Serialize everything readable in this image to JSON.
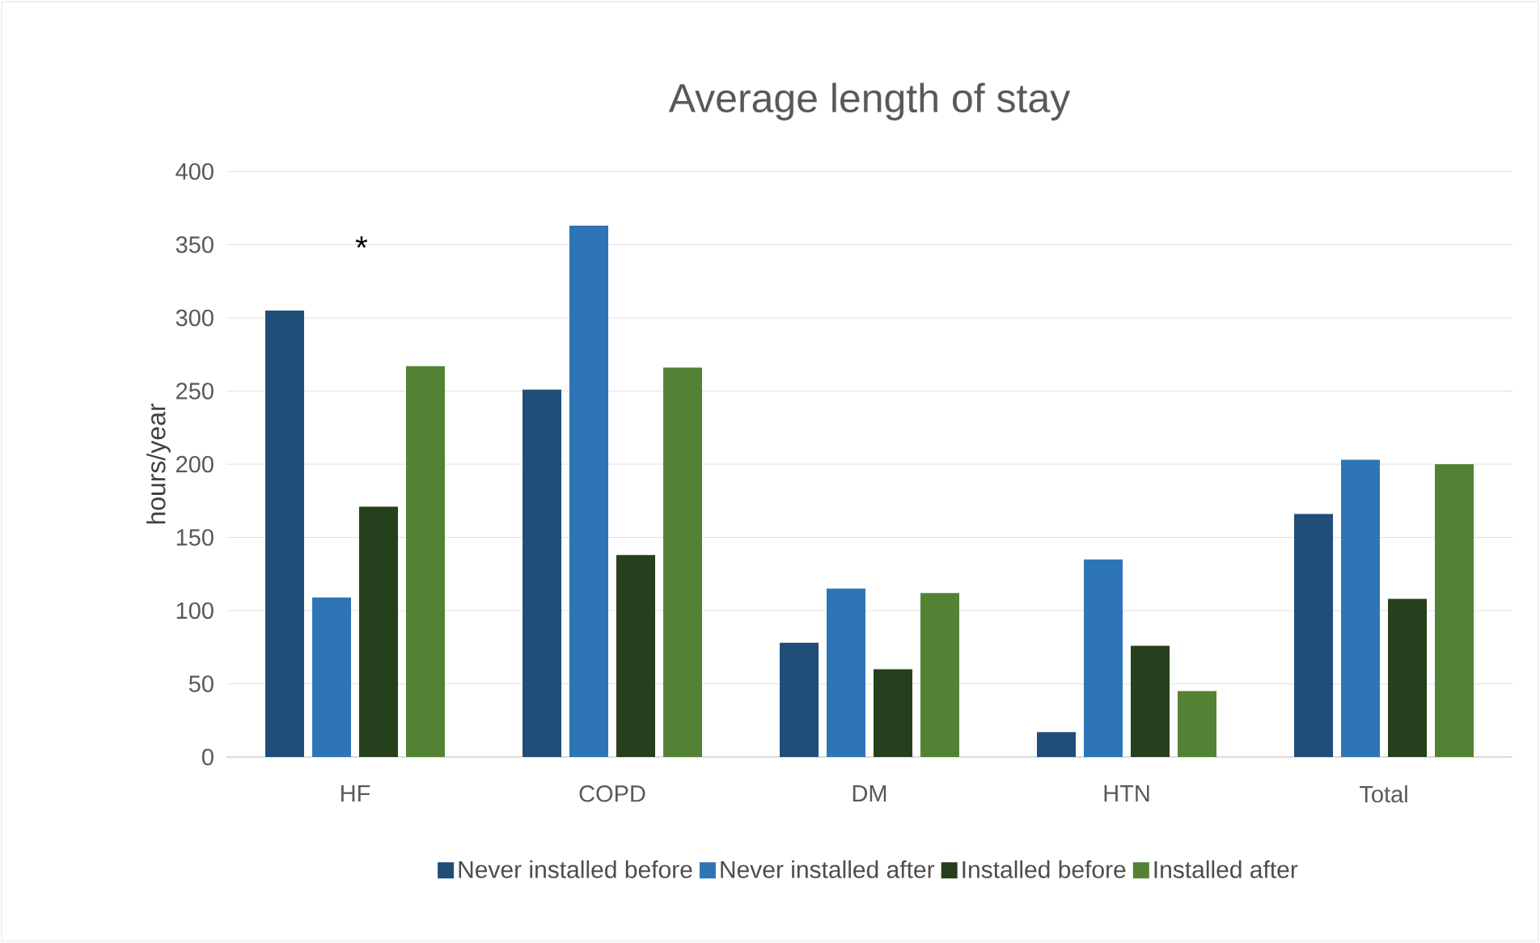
{
  "chart_data": {
    "type": "bar",
    "title": "Average length of stay",
    "ylabel": "hours/year",
    "categories": [
      "HF",
      "COPD",
      "DM",
      "HTN",
      "Total"
    ],
    "series": [
      {
        "name": "Never installed before",
        "color": "#1f4e79",
        "values": [
          305,
          251,
          78,
          17,
          166
        ]
      },
      {
        "name": "Never installed after",
        "color": "#2e75b6",
        "values": [
          109,
          363,
          115,
          135,
          203
        ]
      },
      {
        "name": "Installed before",
        "color": "#263f1c",
        "values": [
          171,
          138,
          60,
          76,
          108
        ]
      },
      {
        "name": "Installed after",
        "color": "#548235",
        "values": [
          267,
          266,
          112,
          45,
          200
        ]
      }
    ],
    "ylim": [
      0,
      400
    ],
    "yticks": [
      0,
      50,
      100,
      150,
      200,
      250,
      300,
      350,
      400
    ],
    "grid": "y",
    "legend": "bottom",
    "annotations": [
      "*"
    ]
  }
}
